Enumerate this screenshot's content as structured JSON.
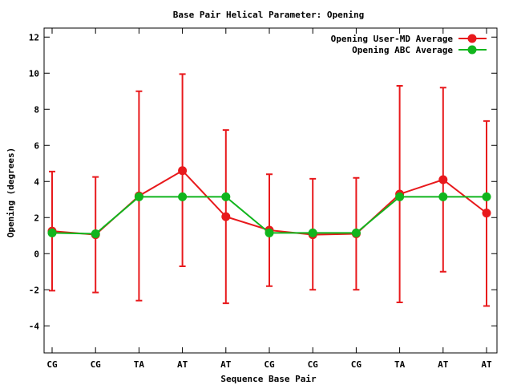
{
  "chart_data": {
    "type": "line",
    "title": "Base Pair Helical Parameter: Opening",
    "xlabel": "Sequence Base Pair",
    "ylabel": "Opening (degrees)",
    "categories": [
      "CG",
      "CG",
      "TA",
      "AT",
      "AT",
      "CG",
      "CG",
      "CG",
      "TA",
      "AT",
      "AT"
    ],
    "ylim": [
      -5.5,
      12.5
    ],
    "yticks": [
      -4,
      -2,
      0,
      2,
      4,
      6,
      8,
      10,
      12
    ],
    "ytick_labels": [
      "-4",
      "-2",
      "0",
      "2",
      "4",
      "6",
      "8",
      "10",
      "12"
    ],
    "grid": false,
    "legend_position": "top-right",
    "series": [
      {
        "name": "Opening User-MD Average",
        "color": "#e8191c",
        "values": [
          1.25,
          1.05,
          3.2,
          4.6,
          2.05,
          1.3,
          1.05,
          1.1,
          3.3,
          4.1,
          2.25
        ],
        "error_low": [
          -2.05,
          -2.15,
          -2.6,
          -0.7,
          -2.75,
          -1.8,
          -2.0,
          -2.0,
          -2.7,
          -1.0,
          -2.9
        ],
        "error_high": [
          4.55,
          4.25,
          9.0,
          9.95,
          6.85,
          4.4,
          4.15,
          4.2,
          9.3,
          9.2,
          7.35
        ]
      },
      {
        "name": "Opening ABC Average",
        "color": "#11b51d",
        "values": [
          1.15,
          1.1,
          3.15,
          3.15,
          3.15,
          1.15,
          1.15,
          1.15,
          3.15,
          3.15,
          3.15
        ]
      }
    ]
  }
}
